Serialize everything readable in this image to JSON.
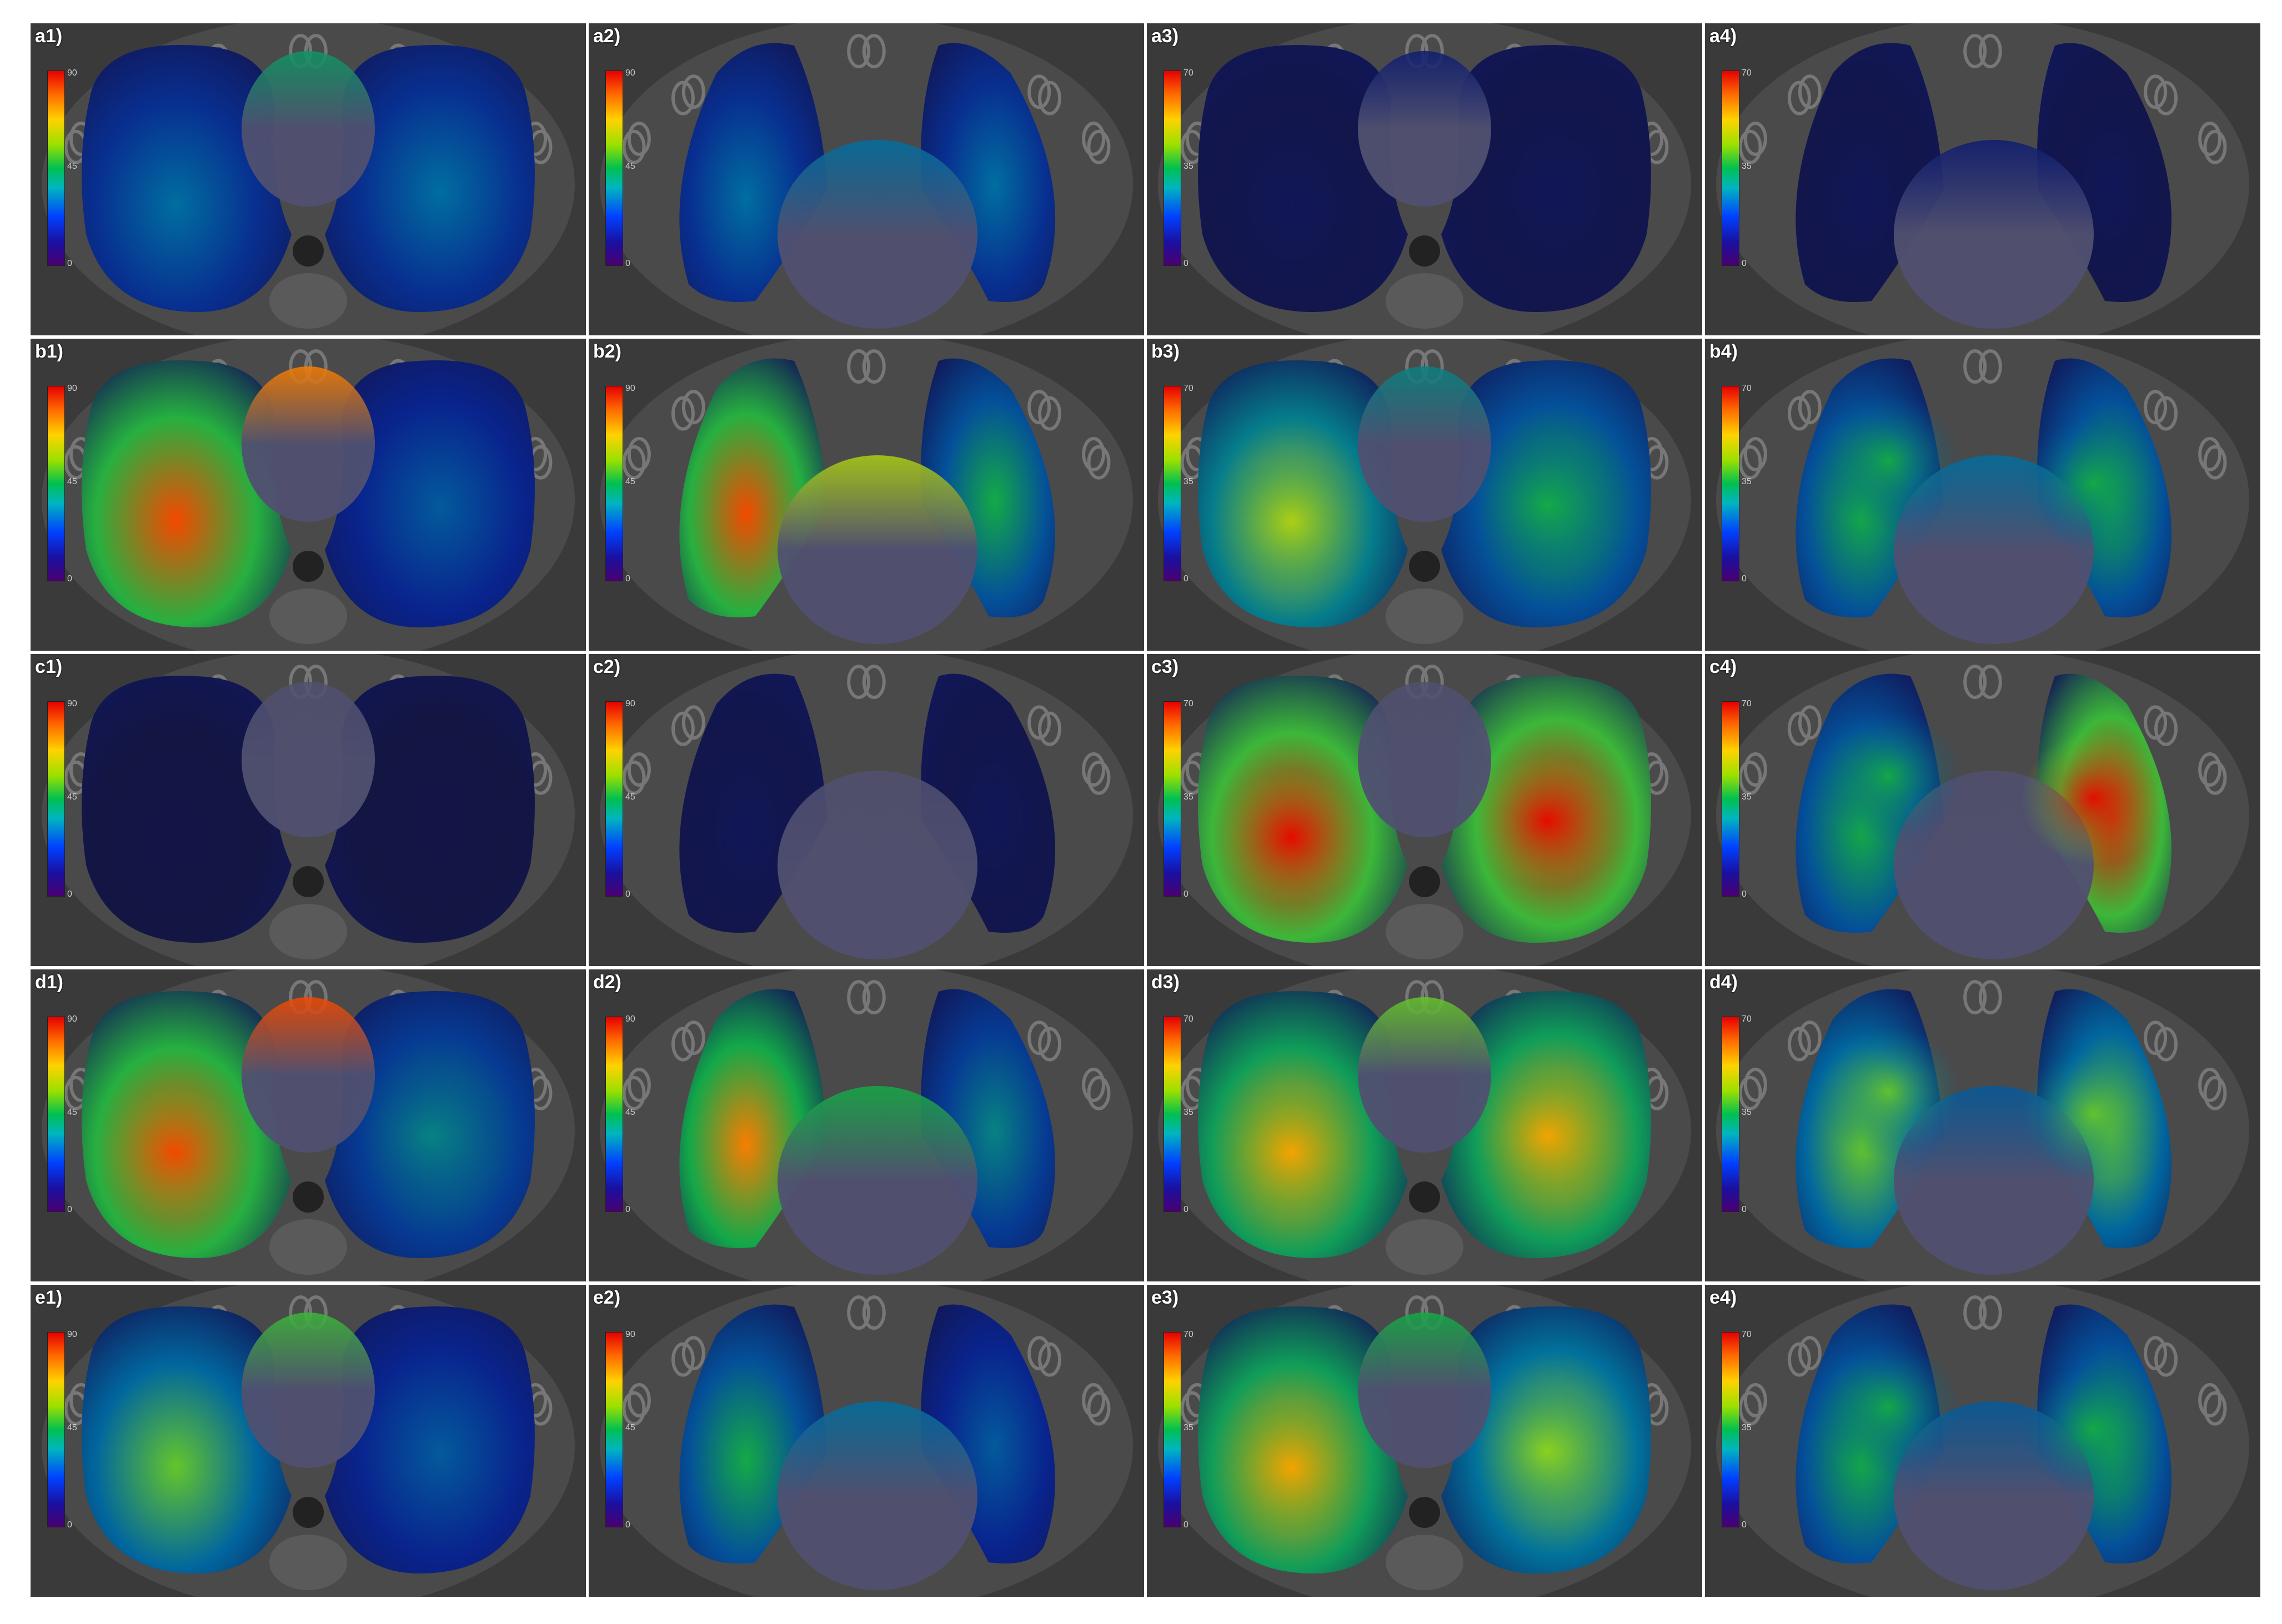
{
  "rows": [
    "a",
    "b",
    "c",
    "d",
    "e"
  ],
  "columns": [
    {
      "col": 1,
      "view": "axial",
      "scale": {
        "max": "90",
        "mid": "45",
        "min": "0"
      }
    },
    {
      "col": 2,
      "view": "coronal",
      "scale": {
        "max": "90",
        "mid": "45",
        "min": "0"
      }
    },
    {
      "col": 3,
      "view": "axial",
      "scale": {
        "max": "70",
        "mid": "35",
        "min": "0"
      }
    },
    {
      "col": 4,
      "view": "coronal",
      "scale": {
        "max": "70",
        "mid": "35",
        "min": "0"
      }
    }
  ],
  "panels": [
    {
      "label": "a1)",
      "hot_left": 0.35,
      "hot_right": 0.35,
      "heart": 0.45,
      "pattern": "bands"
    },
    {
      "label": "a2)",
      "hot_left": 0.35,
      "hot_right": 0.35,
      "heart": 0.35,
      "pattern": "bands"
    },
    {
      "label": "a3)",
      "hot_left": 0.05,
      "hot_right": 0.05,
      "heart": 0.1,
      "pattern": "dark"
    },
    {
      "label": "a4)",
      "hot_left": 0.05,
      "hot_right": 0.05,
      "heart": 0.1,
      "pattern": "dark"
    },
    {
      "label": "b1)",
      "hot_left": 0.95,
      "hot_right": 0.3,
      "heart": 0.9,
      "pattern": "left"
    },
    {
      "label": "b2)",
      "hot_left": 0.95,
      "hot_right": 0.5,
      "heart": 0.7,
      "pattern": "left"
    },
    {
      "label": "b3)",
      "hot_left": 0.7,
      "hot_right": 0.5,
      "heart": 0.4,
      "pattern": "blotch"
    },
    {
      "label": "b4)",
      "hot_left": 0.5,
      "hot_right": 0.5,
      "heart": 0.35,
      "pattern": "blotch"
    },
    {
      "label": "c1)",
      "hot_left": 0.02,
      "hot_right": 0.02,
      "heart": 0.0,
      "pattern": "dark"
    },
    {
      "label": "c2)",
      "hot_left": 0.05,
      "hot_right": 0.05,
      "heart": 0.0,
      "pattern": "dark"
    },
    {
      "label": "c3)",
      "hot_left": 1.0,
      "hot_right": 1.0,
      "heart": 0.0,
      "pattern": "blotch"
    },
    {
      "label": "c4)",
      "hot_left": 0.5,
      "hot_right": 1.0,
      "heart": 0.0,
      "pattern": "blotch"
    },
    {
      "label": "d1)",
      "hot_left": 0.95,
      "hot_right": 0.4,
      "heart": 0.95,
      "pattern": "center"
    },
    {
      "label": "d2)",
      "hot_left": 0.9,
      "hot_right": 0.4,
      "heart": 0.5,
      "pattern": "left"
    },
    {
      "label": "d3)",
      "hot_left": 0.85,
      "hot_right": 0.85,
      "heart": 0.6,
      "pattern": "blotch"
    },
    {
      "label": "d4)",
      "hot_left": 0.6,
      "hot_right": 0.6,
      "heart": 0.3,
      "pattern": "blotch"
    },
    {
      "label": "e1)",
      "hot_left": 0.6,
      "hot_right": 0.3,
      "heart": 0.55,
      "pattern": "left"
    },
    {
      "label": "e2)",
      "hot_left": 0.5,
      "hot_right": 0.3,
      "heart": 0.35,
      "pattern": "bands"
    },
    {
      "label": "e3)",
      "hot_left": 0.85,
      "hot_right": 0.65,
      "heart": 0.5,
      "pattern": "blotch"
    },
    {
      "label": "e4)",
      "hot_left": 0.5,
      "hot_right": 0.5,
      "heart": 0.3,
      "pattern": "blotch"
    }
  ],
  "colors": {
    "background": "#3a3a3a",
    "heart": "#505070",
    "lung_dark": "#12122a"
  }
}
